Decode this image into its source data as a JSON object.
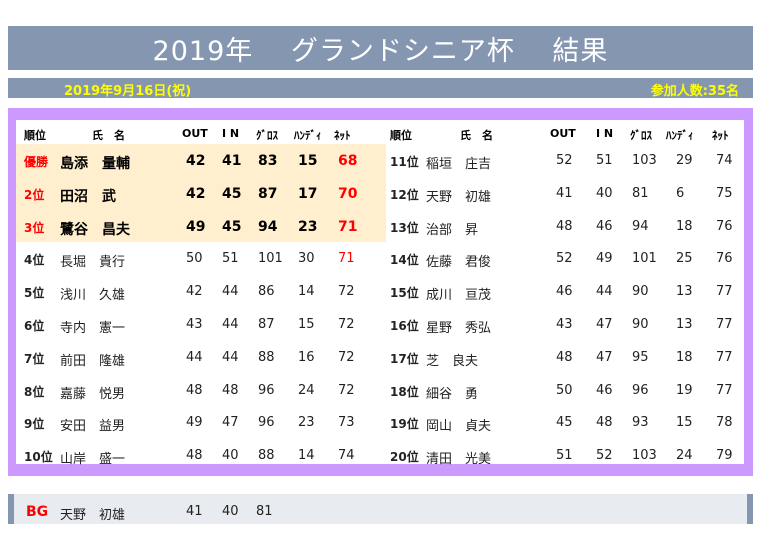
{
  "title": "2019年　 グランドシニア杯　 結果",
  "date": "2019年9月16日(祝)",
  "participants": "参加人数:35名",
  "headers": {
    "rank": "順位",
    "name": "氏　名",
    "out": "OUT",
    "in": "I N",
    "gross": "ｸﾞﾛｽ",
    "handi": "ﾊﾝﾃﾞｨ",
    "net": "ﾈｯﾄ"
  },
  "left": [
    {
      "rank": "優勝",
      "name": "島添　量輔",
      "out": "42",
      "in": "41",
      "gross": "83",
      "handi": "15",
      "net": "68"
    },
    {
      "rank": "2位",
      "name": "田沼　武",
      "out": "42",
      "in": "45",
      "gross": "87",
      "handi": "17",
      "net": "70"
    },
    {
      "rank": "3位",
      "name": "鷺谷　昌夫",
      "out": "49",
      "in": "45",
      "gross": "94",
      "handi": "23",
      "net": "71"
    },
    {
      "rank": "4位",
      "name": "長堀　貴行",
      "out": "50",
      "in": "51",
      "gross": "101",
      "handi": "30",
      "net": "71"
    },
    {
      "rank": "5位",
      "name": "浅川　久雄",
      "out": "42",
      "in": "44",
      "gross": "86",
      "handi": "14",
      "net": "72"
    },
    {
      "rank": "6位",
      "name": "寺内　憲一",
      "out": "43",
      "in": "44",
      "gross": "87",
      "handi": "15",
      "net": "72"
    },
    {
      "rank": "7位",
      "name": "前田　隆雄",
      "out": "44",
      "in": "44",
      "gross": "88",
      "handi": "16",
      "net": "72"
    },
    {
      "rank": "8位",
      "name": "嘉藤　悦男",
      "out": "48",
      "in": "48",
      "gross": "96",
      "handi": "24",
      "net": "72"
    },
    {
      "rank": "9位",
      "name": "安田　益男",
      "out": "49",
      "in": "47",
      "gross": "96",
      "handi": "23",
      "net": "73"
    },
    {
      "rank": "10位",
      "name": "山岸　盛一",
      "out": "48",
      "in": "40",
      "gross": "88",
      "handi": "14",
      "net": "74"
    }
  ],
  "right": [
    {
      "rank": "11位",
      "name": "稲垣　庄吉",
      "out": "52",
      "in": "51",
      "gross": "103",
      "handi": "29",
      "net": "74"
    },
    {
      "rank": "12位",
      "name": "天野　初雄",
      "out": "41",
      "in": "40",
      "gross": "81",
      "handi": "6",
      "net": "75"
    },
    {
      "rank": "13位",
      "name": "治部　昇",
      "out": "48",
      "in": "46",
      "gross": "94",
      "handi": "18",
      "net": "76"
    },
    {
      "rank": "14位",
      "name": "佐藤　君俊",
      "out": "52",
      "in": "49",
      "gross": "101",
      "handi": "25",
      "net": "76"
    },
    {
      "rank": "15位",
      "name": "成川　亘茂",
      "out": "46",
      "in": "44",
      "gross": "90",
      "handi": "13",
      "net": "77"
    },
    {
      "rank": "16位",
      "name": "星野　秀弘",
      "out": "43",
      "in": "47",
      "gross": "90",
      "handi": "13",
      "net": "77"
    },
    {
      "rank": "17位",
      "name": "芝　良夫",
      "out": "48",
      "in": "47",
      "gross": "95",
      "handi": "18",
      "net": "77"
    },
    {
      "rank": "18位",
      "name": "細谷　勇",
      "out": "50",
      "in": "46",
      "gross": "96",
      "handi": "19",
      "net": "77"
    },
    {
      "rank": "19位",
      "name": "岡山　貞夫",
      "out": "45",
      "in": "48",
      "gross": "93",
      "handi": "15",
      "net": "78"
    },
    {
      "rank": "20位",
      "name": "清田　光美",
      "out": "51",
      "in": "52",
      "gross": "103",
      "handi": "24",
      "net": "79"
    }
  ],
  "bg": {
    "label": "BG",
    "name": "天野　初雄",
    "out": "41",
    "in": "40",
    "gross": "81"
  },
  "colors": {
    "accent": "#8496b0",
    "frame": "#cc99ff",
    "highlight": "#ffefcf",
    "red": "#ff0000",
    "date": "#ffff00"
  }
}
